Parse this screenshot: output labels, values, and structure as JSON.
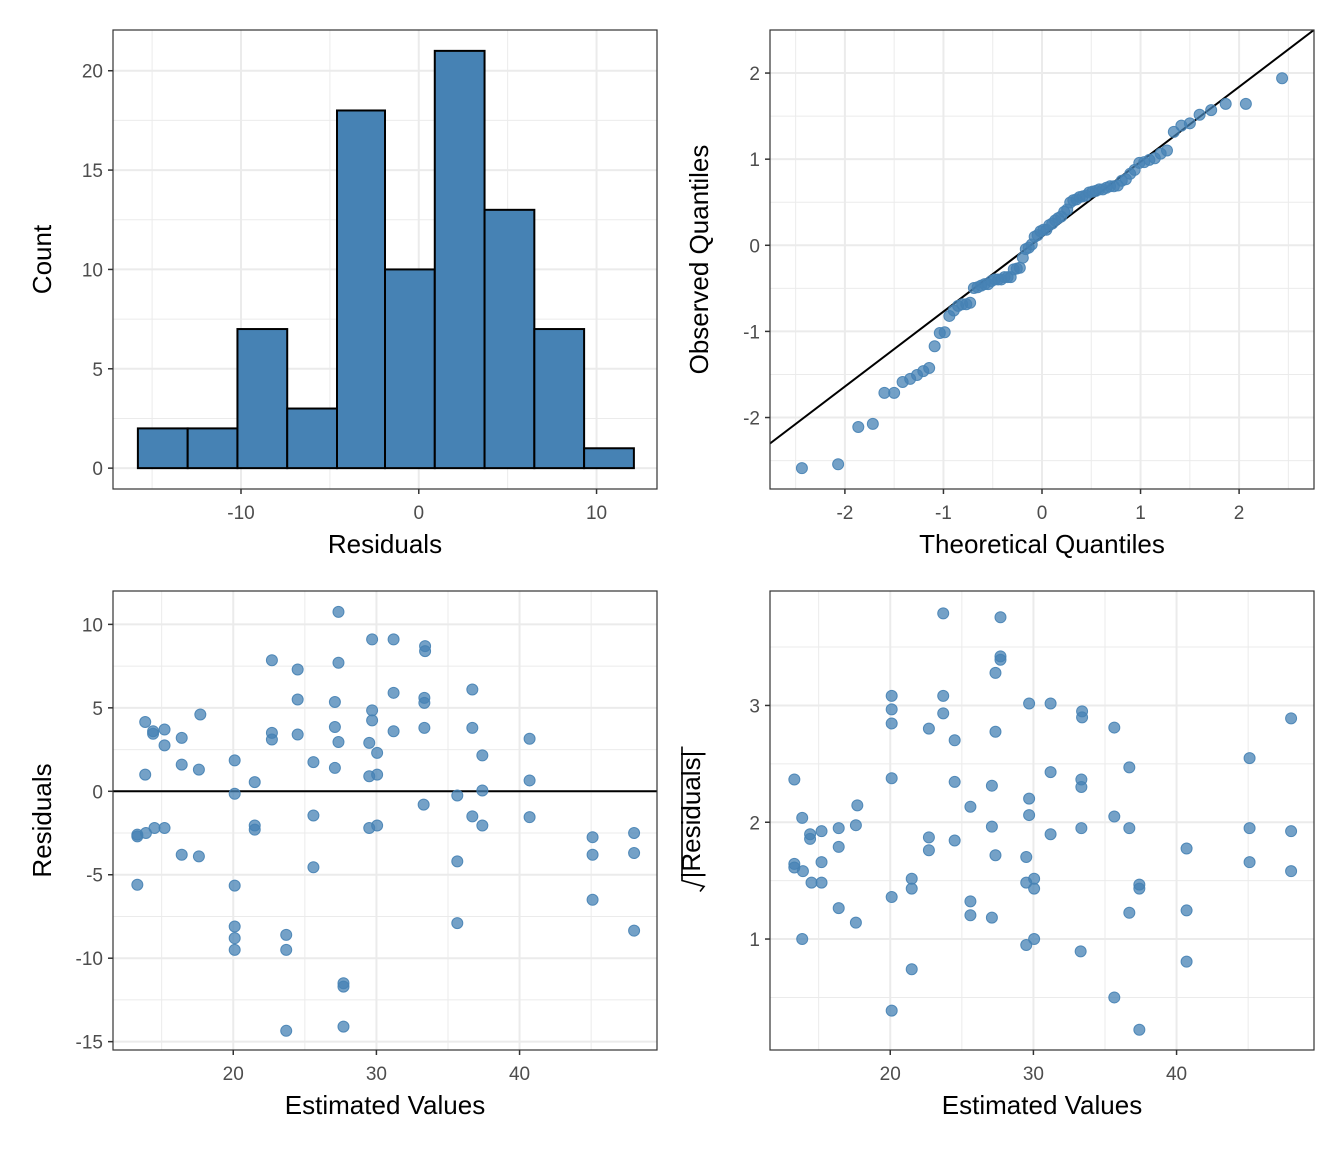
{
  "colors": {
    "fill": "#4682b4",
    "point": "#4682b4",
    "line": "#000000"
  },
  "chart_data": [
    {
      "id": "histogram",
      "type": "bar",
      "title": "",
      "xlabel": "Residuals",
      "ylabel": "Count",
      "bin_edges": [
        -15.8,
        -13.0,
        -10.2,
        -7.4,
        -4.6,
        -1.9,
        0.9,
        3.7,
        6.5,
        9.3,
        12.1
      ],
      "values": [
        2,
        2,
        7,
        3,
        18,
        10,
        21,
        13,
        7,
        1
      ],
      "xlim": [
        -17.2,
        13.4
      ],
      "ylim": [
        -1.05,
        22.05
      ],
      "x_ticks": [
        -10,
        0,
        10
      ],
      "x_tick_labels": [
        "-10",
        "0",
        "10"
      ],
      "y_ticks": [
        0,
        5,
        10,
        15,
        20
      ],
      "y_tick_labels": [
        "0",
        "5",
        "10",
        "15",
        "20"
      ],
      "grid": true
    },
    {
      "id": "qq-plot",
      "type": "scatter",
      "title": "",
      "xlabel": "Theoretical Quantiles",
      "ylabel": "Observed Quantiles",
      "xlim": [
        -2.76,
        2.76
      ],
      "ylim": [
        -2.83,
        2.5
      ],
      "x_ticks": [
        -2,
        -1,
        0,
        1,
        2
      ],
      "x_tick_labels": [
        "-2",
        "-1",
        "0",
        "1",
        "2"
      ],
      "y_ticks": [
        -2,
        -1,
        0,
        1,
        2
      ],
      "y_tick_labels": [
        "-2",
        "-1",
        "0",
        "1",
        "2"
      ],
      "reference_line": {
        "intercept": 0.1,
        "slope": 0.87
      },
      "points_source": "standardized residuals of bottom-left panel, sorted against normal quantiles",
      "grid": true
    },
    {
      "id": "residuals-vs-fitted",
      "type": "scatter",
      "title": "",
      "xlabel": "Estimated Values",
      "ylabel": "Residuals",
      "xlim": [
        11.6,
        49.6
      ],
      "ylim": [
        -15.5,
        12.0
      ],
      "x_ticks": [
        20,
        30,
        40
      ],
      "x_tick_labels": [
        "20",
        "30",
        "40"
      ],
      "y_ticks": [
        -15,
        -10,
        -5,
        0,
        5,
        10
      ],
      "y_tick_labels": [
        "-15",
        "-10",
        "-5",
        "0",
        "5",
        "10"
      ],
      "hline": 0,
      "grid": true,
      "x": [
        13.3,
        13.3,
        13.3,
        13.85,
        13.85,
        13.9,
        14.4,
        14.4,
        14.5,
        15.2,
        15.2,
        15.2,
        16.4,
        16.4,
        16.4,
        17.7,
        17.6,
        17.6,
        20.1,
        20.1,
        20.1,
        20.1,
        20.1,
        20.1,
        21.5,
        21.5,
        21.5,
        22.7,
        22.7,
        22.7,
        23.7,
        23.7,
        23.7,
        24.5,
        24.5,
        24.5,
        25.6,
        25.6,
        25.6,
        27.35,
        27.35,
        27.1,
        27.1,
        27.35,
        27.1,
        27.7,
        27.7,
        27.7,
        29.7,
        31.2,
        33.4,
        33.4,
        31.2,
        36.7,
        33.35,
        33.35,
        29.7,
        29.7,
        31.2,
        33.35,
        36.7,
        29.5,
        30.05,
        37.4,
        29.5,
        30.05,
        40.7,
        40.7,
        37.4,
        35.65,
        33.3,
        36.7,
        37.4,
        40.7,
        29.5,
        30.05,
        45.1,
        45.1,
        48.0,
        48.0,
        35.65,
        35.65,
        45.1,
        48.0
      ],
      "y": [
        -2.7,
        -2.6,
        -5.6,
        4.15,
        1.0,
        -2.5,
        3.6,
        3.45,
        -2.2,
        3.7,
        2.75,
        -2.2,
        3.2,
        1.6,
        -3.8,
        4.6,
        1.3,
        -3.9,
        1.85,
        -0.15,
        -5.65,
        -8.1,
        -8.8,
        -9.5,
        0.55,
        -2.05,
        -2.3,
        7.85,
        3.5,
        3.1,
        -8.6,
        -9.5,
        -14.35,
        7.3,
        5.5,
        3.4,
        1.75,
        -1.45,
        -4.55,
        10.75,
        7.7,
        5.35,
        3.85,
        2.95,
        1.4,
        -11.5,
        -11.7,
        -14.1,
        9.1,
        9.1,
        8.7,
        8.4,
        5.9,
        6.1,
        5.6,
        5.3,
        4.85,
        4.25,
        3.6,
        3.8,
        3.8,
        2.9,
        2.3,
        2.15,
        0.9,
        1.0,
        3.15,
        0.65,
        0.05,
        -0.25,
        -0.8,
        -1.5,
        -2.05,
        -1.55,
        -2.2,
        -2.05,
        -2.75,
        -3.8,
        -2.5,
        -3.7,
        -4.2,
        -7.9,
        -6.5,
        -8.35
      ]
    },
    {
      "id": "scale-location",
      "type": "scatter",
      "title": "",
      "xlabel": "Estimated Values",
      "ylabel": "√|Residuals|",
      "ylabel_radicand": "|Residuals|",
      "xlim": [
        11.6,
        49.6
      ],
      "ylim": [
        0.05,
        3.98
      ],
      "x_ticks": [
        20,
        30,
        40
      ],
      "x_tick_labels": [
        "20",
        "30",
        "40"
      ],
      "y_ticks": [
        1,
        2,
        3
      ],
      "y_tick_labels": [
        "1",
        "2",
        "3"
      ],
      "points_source": "sqrt(|residual|) of bottom-left panel vs the same estimated values",
      "grid": true
    }
  ]
}
